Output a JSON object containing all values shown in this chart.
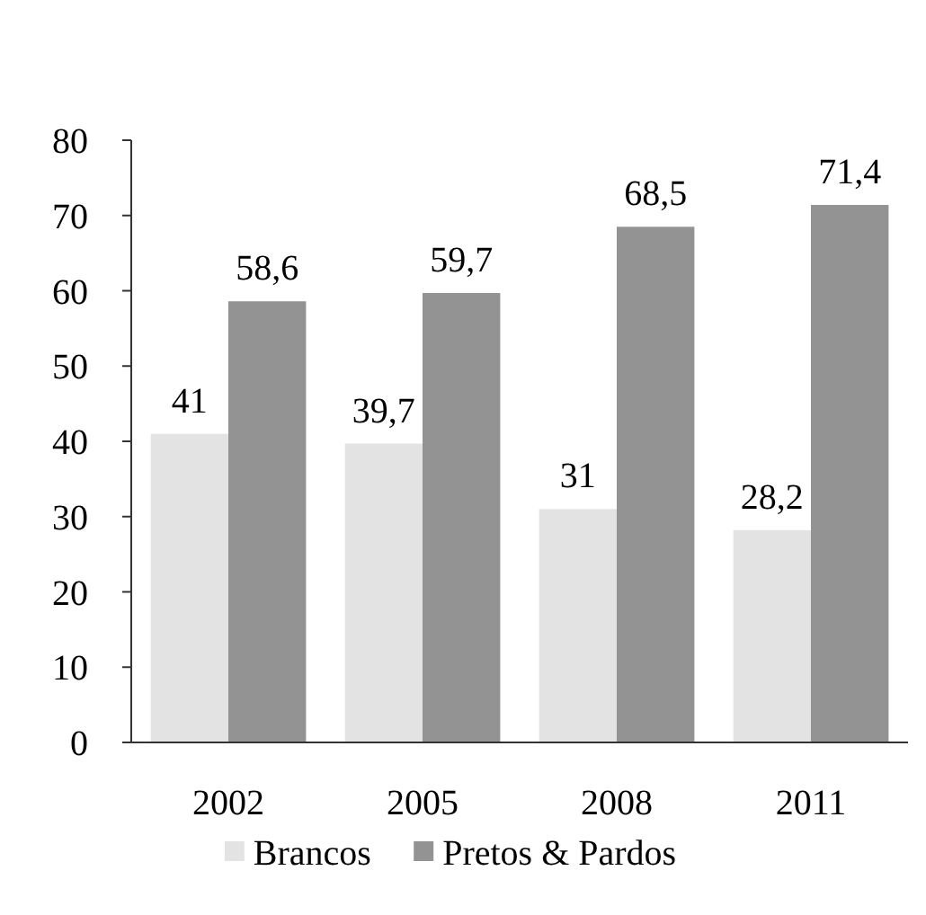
{
  "chart_data": {
    "type": "bar",
    "categories": [
      "2002",
      "2005",
      "2008",
      "2011"
    ],
    "series": [
      {
        "name": "Brancos",
        "color": "#e3e3e3",
        "values": [
          41,
          39.7,
          31,
          28.2
        ],
        "value_labels": [
          "41",
          "39,7",
          "31",
          "28,2"
        ]
      },
      {
        "name": "Pretos & Pardos",
        "color": "#939393",
        "values": [
          58.6,
          59.7,
          68.5,
          71.4
        ],
        "value_labels": [
          "58,6",
          "59,7",
          "68,5",
          "71,4"
        ]
      }
    ],
    "ylim": [
      0,
      80
    ],
    "yticks": [
      0,
      10,
      20,
      30,
      40,
      50,
      60,
      70,
      80
    ],
    "grid": false,
    "legend": "bottom"
  }
}
